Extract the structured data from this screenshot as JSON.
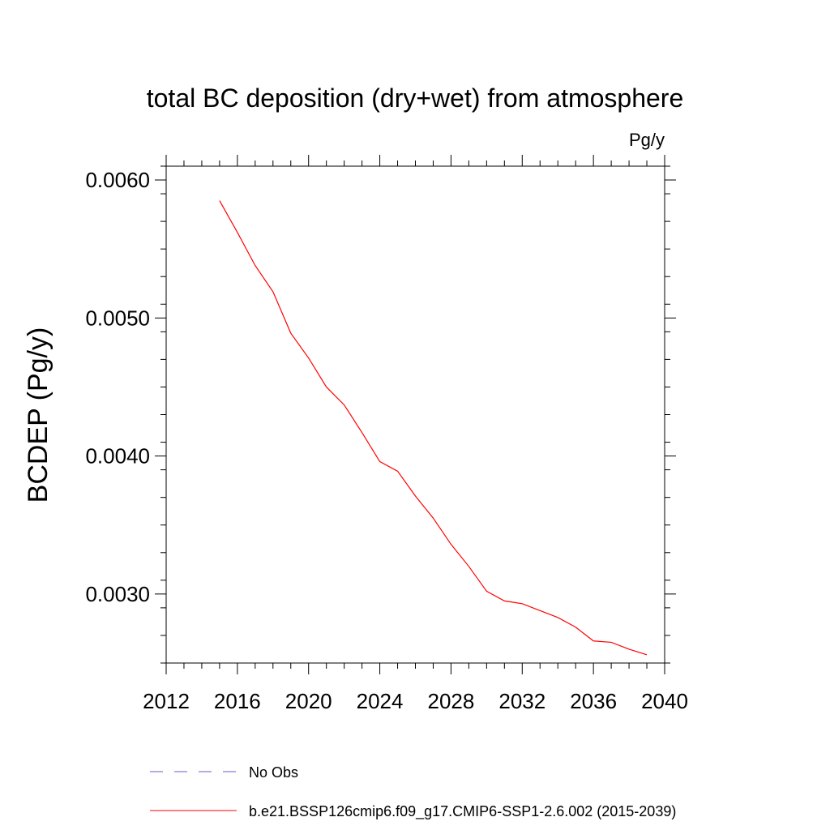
{
  "chart_data": {
    "type": "line",
    "title": "total BC deposition (dry+wet) from atmosphere",
    "units_label": "Pg/y",
    "ylabel": "BCDEP  (Pg/y)",
    "xlabel": "",
    "xlim": [
      2012,
      2040
    ],
    "ylim": [
      0.0025,
      0.0061
    ],
    "x_ticks": [
      2012,
      2016,
      2020,
      2024,
      2028,
      2032,
      2036,
      2040
    ],
    "x_tick_labels": [
      "2012",
      "2016",
      "2020",
      "2024",
      "2028",
      "2032",
      "2036",
      "2040"
    ],
    "y_ticks": [
      0.003,
      0.004,
      0.005,
      0.006
    ],
    "y_tick_labels": [
      "0.0030",
      "0.0040",
      "0.0050",
      "0.0060"
    ],
    "grid": false,
    "legend_position": "bottom",
    "series": [
      {
        "name": "b.e21.BSSP126cmip6.f09_g17.CMIP6-SSP1-2.6.002 (2015-2039)",
        "color": "#ff0000",
        "dash": "solid",
        "x": [
          2015,
          2016,
          2017,
          2018,
          2019,
          2020,
          2021,
          2022,
          2023,
          2024,
          2025,
          2026,
          2027,
          2028,
          2029,
          2030,
          2031,
          2032,
          2033,
          2034,
          2035,
          2036,
          2037,
          2038,
          2039
        ],
        "values": [
          0.00585,
          0.00562,
          0.00538,
          0.00519,
          0.00489,
          0.00471,
          0.0045,
          0.00437,
          0.00417,
          0.00396,
          0.00389,
          0.00371,
          0.00355,
          0.00336,
          0.0032,
          0.00302,
          0.00295,
          0.00293,
          0.00288,
          0.00283,
          0.00276,
          0.00266,
          0.00265,
          0.0026,
          0.00256
        ]
      }
    ],
    "legend": [
      {
        "label": "No Obs",
        "color": "#6a5acd",
        "dash": "dashed"
      },
      {
        "label": "b.e21.BSSP126cmip6.f09_g17.CMIP6-SSP1-2.6.002 (2015-2039)",
        "color": "#ff0000",
        "dash": "solid"
      }
    ]
  }
}
